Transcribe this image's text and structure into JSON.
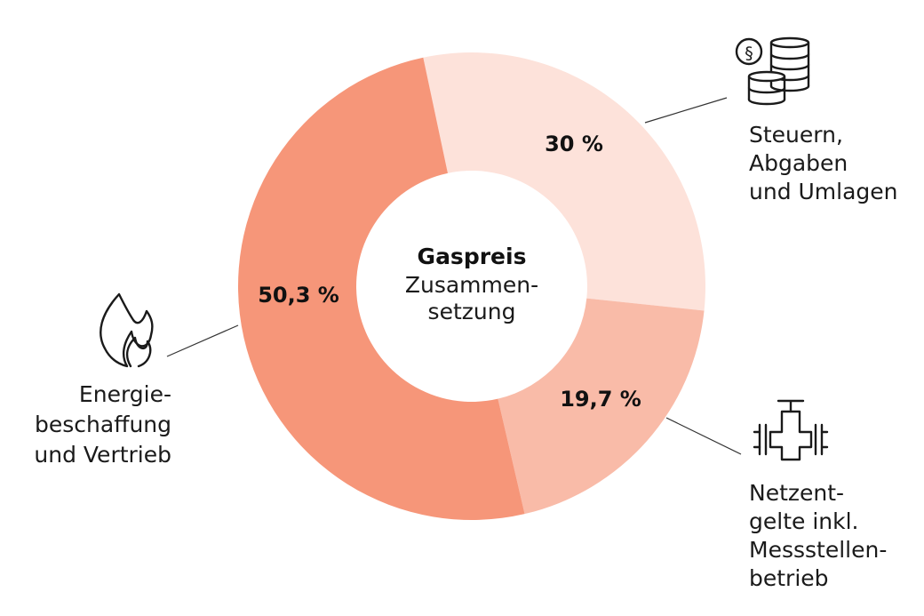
{
  "chart_data": {
    "type": "pie",
    "variant": "donut",
    "center_title": "Gaspreis",
    "center_subtitle": [
      "Zusammen-",
      "setzung"
    ],
    "slices": [
      {
        "value": 30,
        "value_label": "30 %",
        "label_lines": [
          "Steuern,",
          "Abgaben",
          "und Umlagen"
        ],
        "color": "#fde2da",
        "icon": "coins-tax-icon"
      },
      {
        "value": 19.7,
        "value_label": "19,7 %",
        "label_lines": [
          "Netzent-",
          "gelte inkl.",
          "Messstellen-",
          "betrieb"
        ],
        "color": "#f9bba8",
        "icon": "pipe-valve-icon"
      },
      {
        "value": 50.3,
        "value_label": "50,3 %",
        "label_lines": [
          "Energie-",
          "beschaffung",
          "und Vertrieb"
        ],
        "color": "#f69679",
        "icon": "flame-icon"
      }
    ]
  }
}
